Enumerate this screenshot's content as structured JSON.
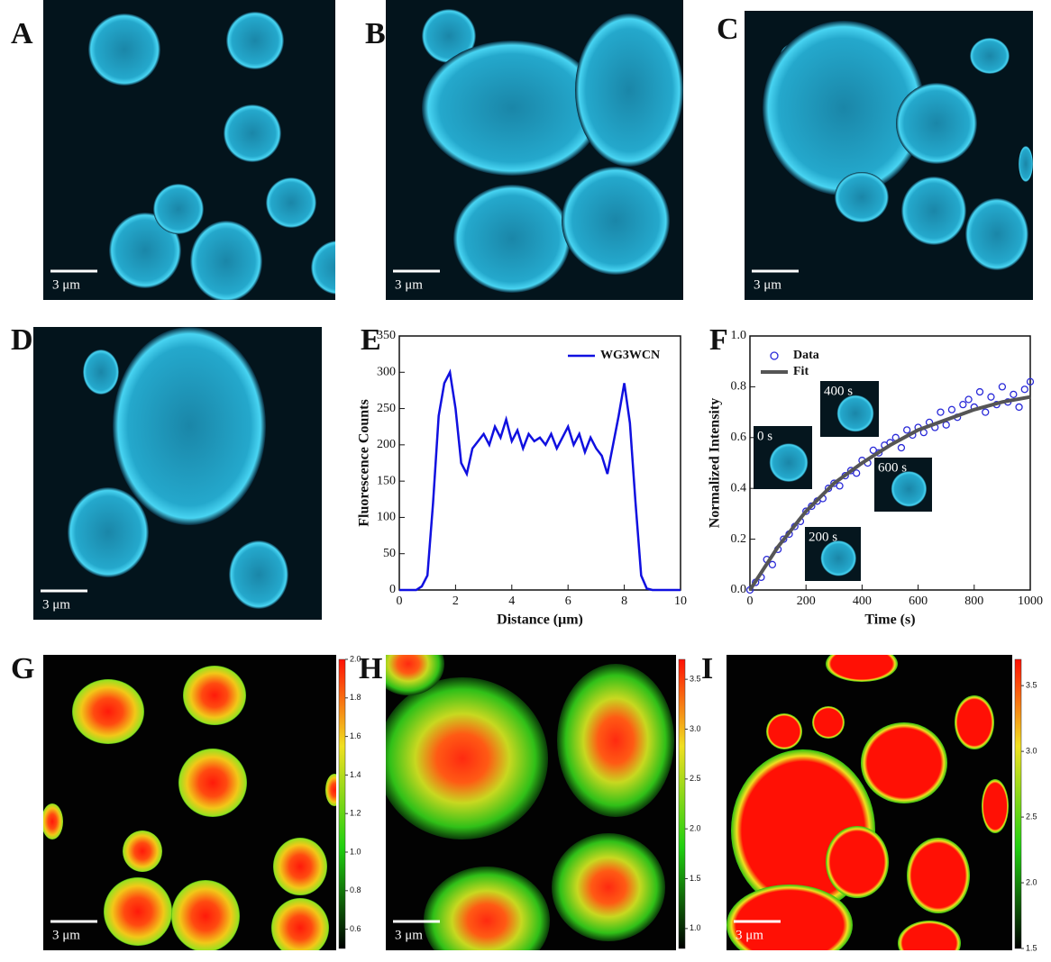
{
  "images": [
    {
      "letter": "A",
      "scale_bar": "3 μm"
    },
    {
      "letter": "B",
      "scale_bar": "3 μm"
    },
    {
      "letter": "C",
      "scale_bar": "3 μm"
    },
    {
      "letter": "D",
      "scale_bar": "3 μm"
    },
    {
      "letter": "G",
      "scale_bar": "3 μm",
      "colorbar": {
        "lim": [
          0.5,
          2.0
        ],
        "ticks": [
          0.6,
          0.8,
          {
            "value": 1.0,
            "label": "1.0"
          },
          1.2,
          1.4,
          1.6,
          1.8,
          {
            "value": 2.0,
            "label": "2.0"
          }
        ]
      }
    },
    {
      "letter": "H",
      "scale_bar": "3 μm",
      "colorbar": {
        "lim": [
          0.8,
          3.7
        ],
        "ticks": [
          {
            "value": 1.0,
            "label": "1.0"
          },
          1.5,
          {
            "value": 2.0,
            "label": "2.0"
          },
          2.5,
          {
            "value": 3.0,
            "label": "3.0"
          },
          3.5
        ]
      }
    },
    {
      "letter": "I",
      "scale_bar": "3 μm",
      "colorbar": {
        "lim": [
          1.5,
          3.7
        ],
        "ticks": [
          1.5,
          {
            "value": 2.0,
            "label": "2.0"
          },
          2.5,
          {
            "value": 3.0,
            "label": "3.0"
          },
          3.5
        ]
      }
    }
  ],
  "chart_data": [
    {
      "type": "line",
      "panel_label": "E",
      "x_label": "Distance (μm)",
      "y_label": "Fluorescence Counts",
      "xlim": [
        0,
        10
      ],
      "xticks": [
        0,
        2,
        4,
        6,
        8,
        10
      ],
      "ylim": [
        0,
        350
      ],
      "yticks": [
        0,
        50,
        100,
        150,
        200,
        250,
        300,
        350
      ],
      "legend": "upper right",
      "series": [
        {
          "name": "WG3WCN",
          "color": "#1010e0",
          "x": [
            0,
            0.2,
            0.4,
            0.6,
            0.8,
            1.0,
            1.2,
            1.4,
            1.6,
            1.8,
            2.0,
            2.2,
            2.4,
            2.6,
            2.8,
            3.0,
            3.2,
            3.4,
            3.6,
            3.8,
            4.0,
            4.2,
            4.4,
            4.6,
            4.8,
            5.0,
            5.2,
            5.4,
            5.6,
            5.8,
            6.0,
            6.2,
            6.4,
            6.6,
            6.8,
            7.0,
            7.2,
            7.4,
            7.6,
            7.8,
            8.0,
            8.2,
            8.4,
            8.6,
            8.8,
            9.0,
            9.2,
            9.4,
            9.6,
            9.8,
            10.0
          ],
          "values": [
            0,
            0,
            0,
            0,
            5,
            20,
            120,
            240,
            285,
            300,
            250,
            175,
            160,
            195,
            205,
            215,
            200,
            225,
            210,
            235,
            205,
            220,
            195,
            215,
            205,
            210,
            200,
            215,
            195,
            210,
            225,
            200,
            215,
            190,
            210,
            195,
            185,
            160,
            200,
            240,
            285,
            230,
            120,
            20,
            2,
            0,
            0,
            0,
            0,
            0,
            0
          ]
        }
      ]
    },
    {
      "type": "scatter",
      "panel_label": "F",
      "x_label": "Time (s)",
      "y_label": "Normalized Intensity",
      "xlim": [
        0,
        1000
      ],
      "xticks": [
        0,
        200,
        400,
        600,
        800,
        1000
      ],
      "ylim": [
        0,
        1.0
      ],
      "yticks": [
        {
          "value": 0,
          "label": "0.0"
        },
        0.2,
        0.4,
        0.6,
        0.8,
        {
          "value": 1.0,
          "label": "1.0"
        }
      ],
      "legend": "upper left",
      "insets": [
        "0 s",
        "200 s",
        "400 s",
        "600 s"
      ],
      "series": [
        {
          "name": "Data",
          "color": "#2a2ad8",
          "x": [
            0,
            20,
            40,
            60,
            80,
            100,
            120,
            140,
            160,
            180,
            200,
            220,
            240,
            260,
            280,
            300,
            320,
            340,
            360,
            380,
            400,
            420,
            440,
            460,
            480,
            500,
            520,
            540,
            560,
            580,
            600,
            620,
            640,
            660,
            680,
            700,
            720,
            740,
            760,
            780,
            800,
            820,
            840,
            860,
            880,
            900,
            920,
            940,
            960,
            980,
            1000
          ],
          "values": [
            0.0,
            0.03,
            0.05,
            0.12,
            0.1,
            0.16,
            0.2,
            0.22,
            0.25,
            0.27,
            0.31,
            0.33,
            0.35,
            0.36,
            0.4,
            0.42,
            0.41,
            0.45,
            0.47,
            0.46,
            0.51,
            0.5,
            0.55,
            0.54,
            0.57,
            0.58,
            0.6,
            0.56,
            0.63,
            0.61,
            0.64,
            0.62,
            0.66,
            0.64,
            0.7,
            0.65,
            0.71,
            0.68,
            0.73,
            0.75,
            0.72,
            0.78,
            0.7,
            0.76,
            0.73,
            0.8,
            0.74,
            0.77,
            0.72,
            0.79,
            0.82
          ]
        },
        {
          "name": "Fit",
          "color": "#555555",
          "type": "line",
          "x": [
            0,
            100,
            200,
            300,
            400,
            500,
            600,
            700,
            800,
            900,
            1000
          ],
          "values": [
            0,
            0.17,
            0.31,
            0.42,
            0.5,
            0.57,
            0.63,
            0.67,
            0.71,
            0.74,
            0.76
          ]
        }
      ]
    }
  ]
}
